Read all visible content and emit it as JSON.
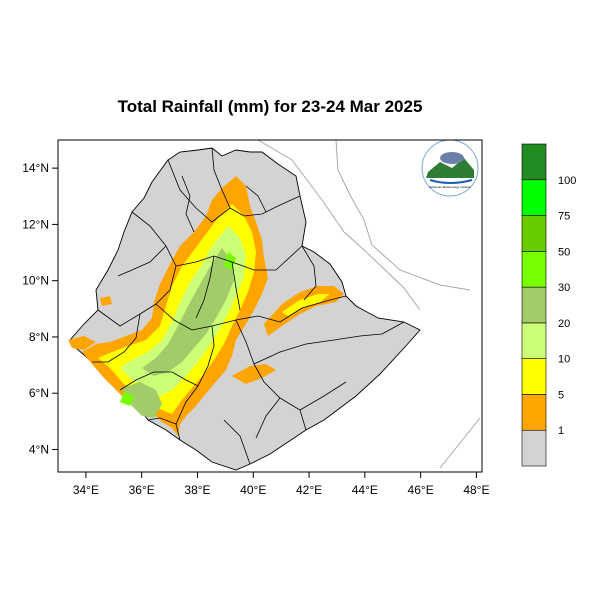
{
  "map": {
    "title": "Total Rainfall (mm) for 23-24 Mar 2025",
    "xticks": [
      {
        "lon": 34,
        "label": "34°E"
      },
      {
        "lon": 36,
        "label": "36°E"
      },
      {
        "lon": 38,
        "label": "38°E"
      },
      {
        "lon": 40,
        "label": "40°E"
      },
      {
        "lon": 42,
        "label": "42°E"
      },
      {
        "lon": 44,
        "label": "44°E"
      },
      {
        "lon": 46,
        "label": "46°E"
      },
      {
        "lon": 48,
        "label": "48°E"
      }
    ],
    "yticks": [
      {
        "lat": 14,
        "label": "14°N"
      },
      {
        "lat": 12,
        "label": "12°N"
      },
      {
        "lat": 10,
        "label": "10°N"
      },
      {
        "lat": 8,
        "label": "8°N"
      },
      {
        "lat": 6,
        "label": "6°N"
      },
      {
        "lat": 4,
        "label": "4°N"
      }
    ],
    "xlim": [
      33,
      48.2
    ],
    "ylim": [
      3.2,
      15.0
    ],
    "logo": {
      "text": "Ethiopian Meteorology Institute"
    }
  },
  "legend": {
    "bins": [
      {
        "color": "#d3d3d3",
        "label": "1"
      },
      {
        "color": "#ffa500",
        "label": "5"
      },
      {
        "color": "#ffff00",
        "label": "10"
      },
      {
        "color": "#ccff77",
        "label": "20"
      },
      {
        "color": "#a2cc6a",
        "label": "30"
      },
      {
        "color": "#77ff00",
        "label": "50"
      },
      {
        "color": "#66cc00",
        "label": "75"
      },
      {
        "color": "#00ff00",
        "label": "100"
      },
      {
        "color": "#228b22",
        "label": ""
      }
    ]
  },
  "colors": {
    "land_dry": "#d3d3d3",
    "orange": "#ffa500",
    "yellow": "#ffff00",
    "light_green": "#ccff77",
    "sage": "#a2cc6a",
    "green": "#77ff00"
  }
}
